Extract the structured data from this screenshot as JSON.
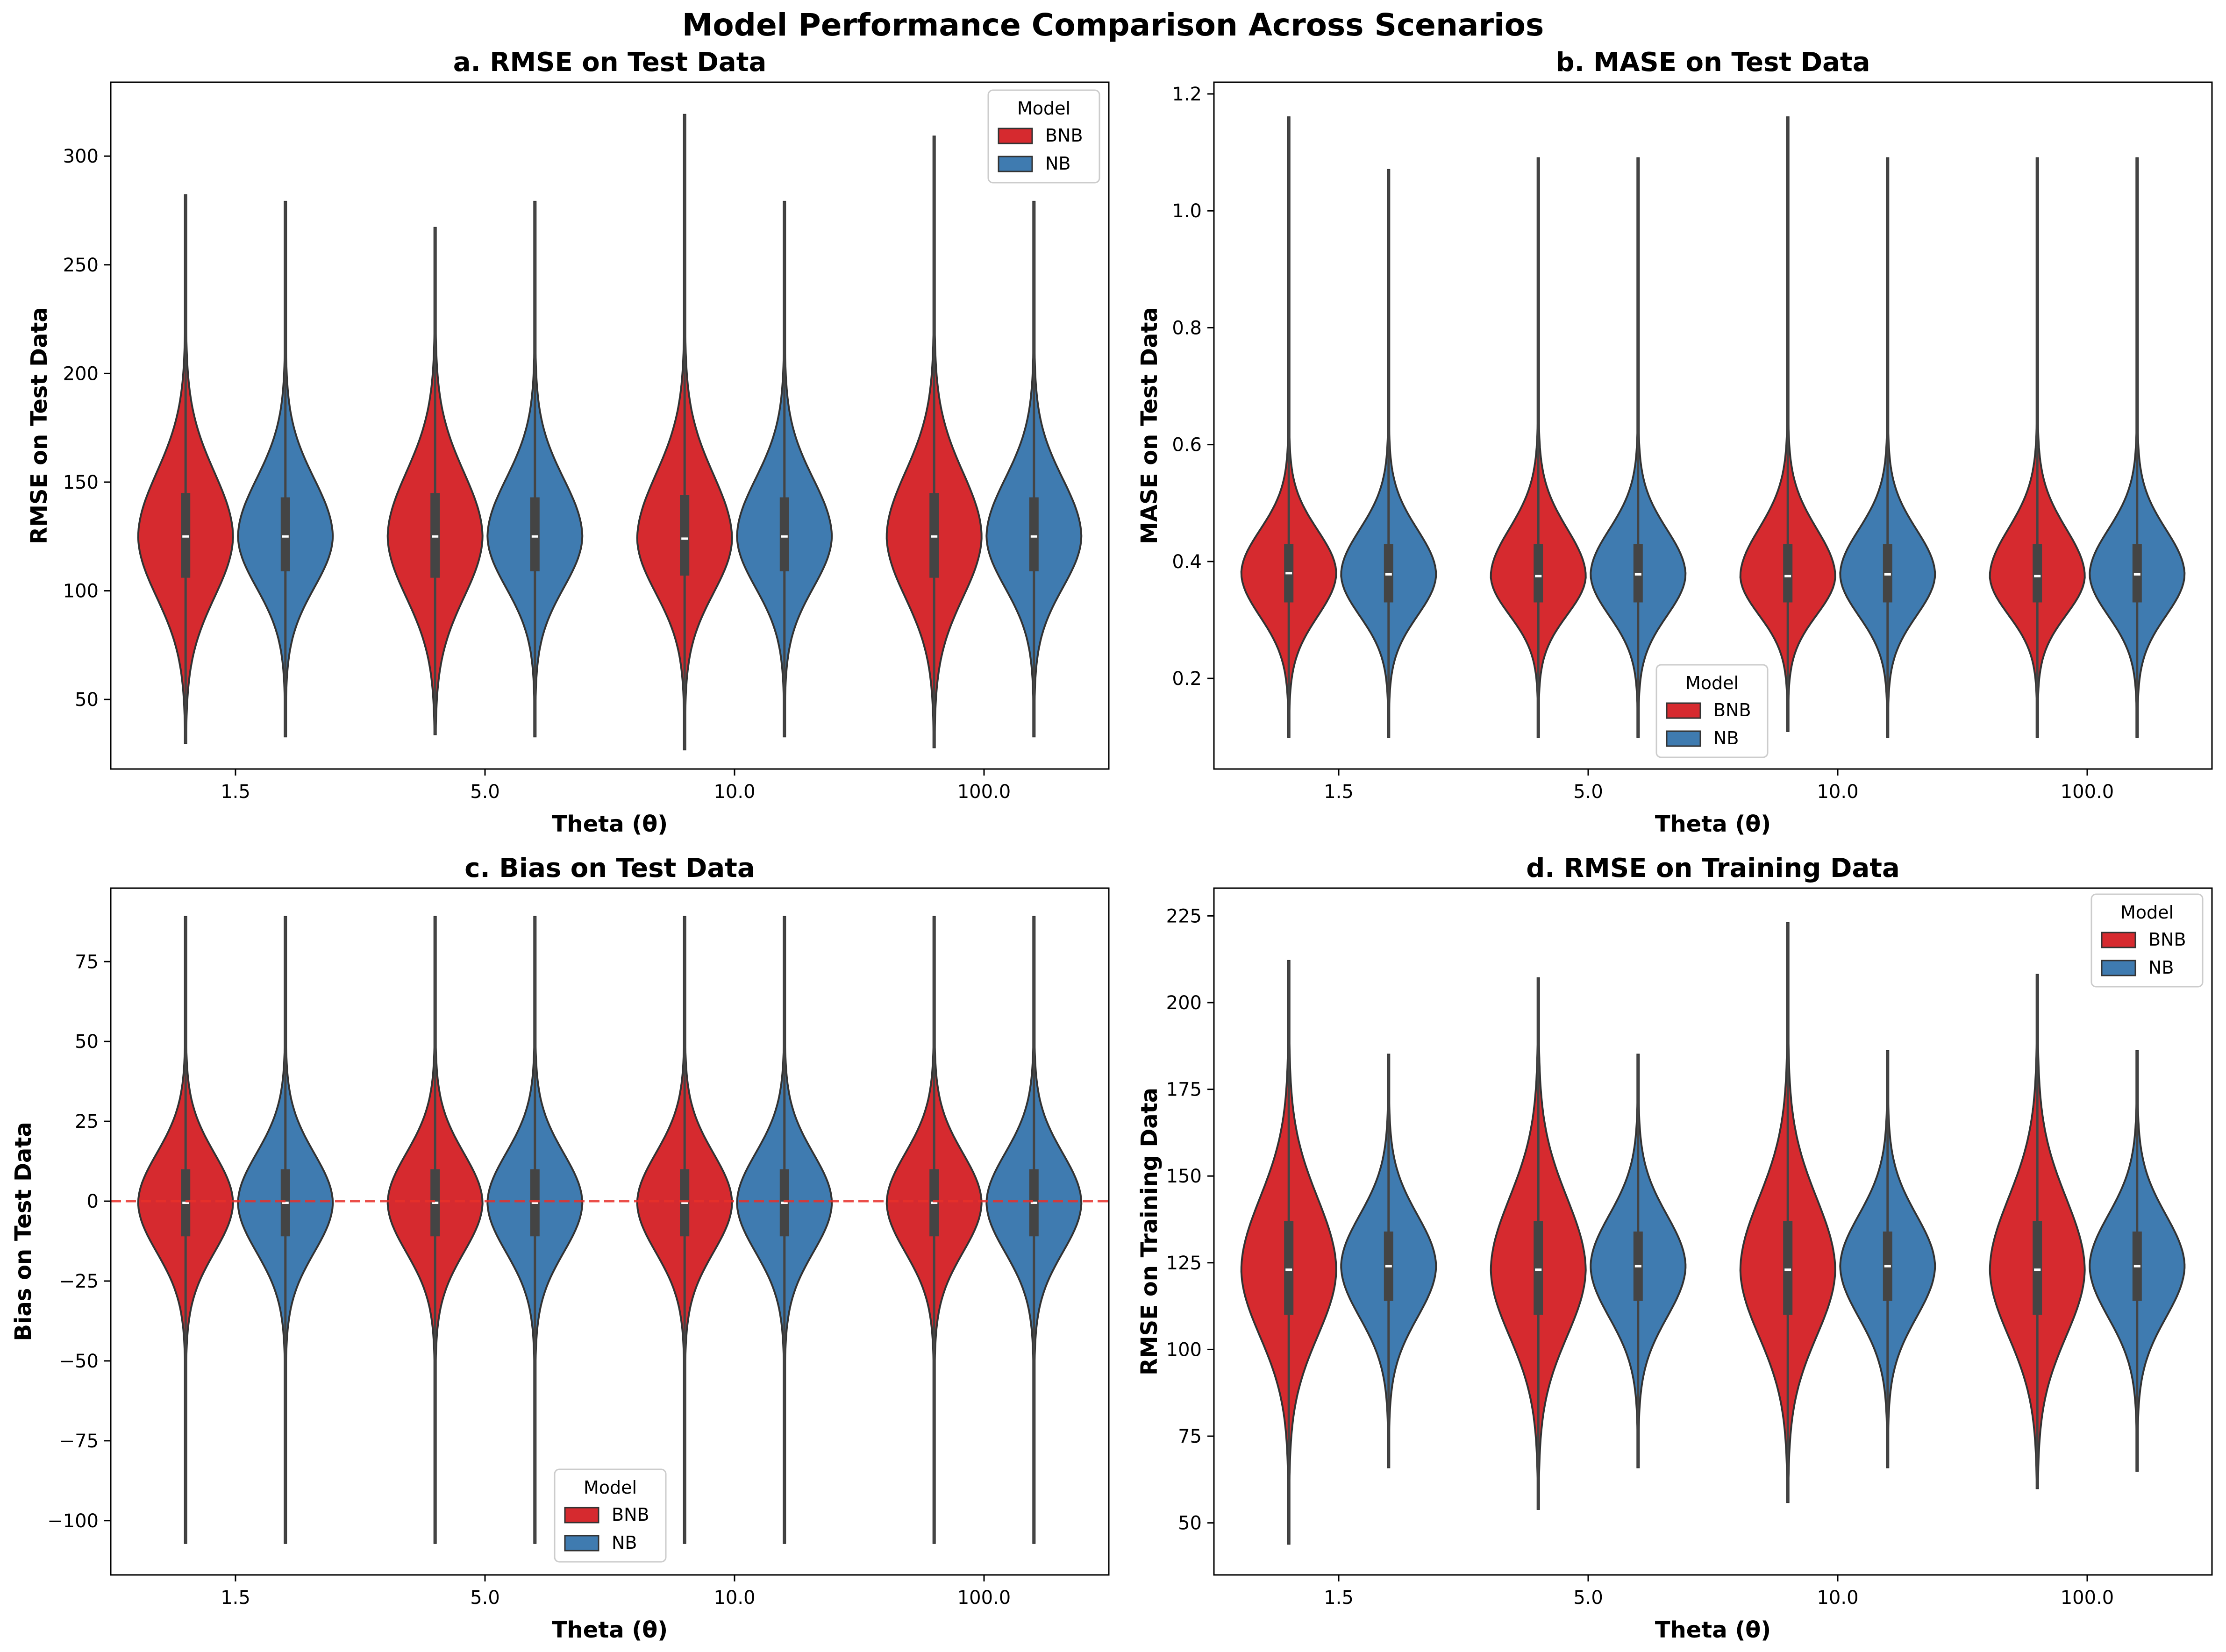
{
  "figure": {
    "suptitle": "Model Performance Comparison Across Scenarios"
  },
  "colors": {
    "BNB": "#d62a2f",
    "NB": "#3f7bb0",
    "edge": "#333333",
    "box": "#444444",
    "refline": "#e8302a"
  },
  "chart_data": [
    {
      "type": "violin",
      "title": "a. RMSE on Test Data",
      "xlabel": "Theta (θ)",
      "ylabel": "RMSE on Test Data",
      "categories": [
        "1.5",
        "5.0",
        "10.0",
        "100.0"
      ],
      "ylim": [
        18,
        334
      ],
      "yticks": [
        50,
        100,
        150,
        200,
        250,
        300
      ],
      "ytick_labels": [
        "50",
        "100",
        "150",
        "200",
        "250",
        "300"
      ],
      "legend": {
        "title": "Model",
        "position": "top-right"
      },
      "series": [
        {
          "name": "BNB",
          "stats": [
            {
              "min": 30,
              "q1": 106,
              "median": 125,
              "q3": 145,
              "max": 282
            },
            {
              "min": 34,
              "q1": 106,
              "median": 125,
              "q3": 145,
              "max": 267
            },
            {
              "min": 27,
              "q1": 107,
              "median": 124,
              "q3": 144,
              "max": 319
            },
            {
              "min": 28,
              "q1": 106,
              "median": 125,
              "q3": 145,
              "max": 309
            }
          ]
        },
        {
          "name": "NB",
          "stats": [
            {
              "min": 33,
              "q1": 109,
              "median": 125,
              "q3": 143,
              "max": 279
            },
            {
              "min": 33,
              "q1": 109,
              "median": 125,
              "q3": 143,
              "max": 279
            },
            {
              "min": 33,
              "q1": 109,
              "median": 125,
              "q3": 143,
              "max": 279
            },
            {
              "min": 33,
              "q1": 109,
              "median": 125,
              "q3": 143,
              "max": 279
            }
          ]
        }
      ]
    },
    {
      "type": "violin",
      "title": "b. MASE on Test Data",
      "xlabel": "Theta (θ)",
      "ylabel": "MASE on Test Data",
      "categories": [
        "1.5",
        "5.0",
        "10.0",
        "100.0"
      ],
      "ylim": [
        0.045,
        1.22
      ],
      "yticks": [
        0.2,
        0.4,
        0.6,
        0.8,
        1.0,
        1.2
      ],
      "ytick_labels": [
        "0.2",
        "0.4",
        "0.6",
        "0.8",
        "1.0",
        "1.2"
      ],
      "legend": {
        "title": "Model",
        "position": "lower-center"
      },
      "series": [
        {
          "name": "BNB",
          "stats": [
            {
              "min": 0.1,
              "q1": 0.33,
              "median": 0.38,
              "q3": 0.43,
              "max": 1.16
            },
            {
              "min": 0.1,
              "q1": 0.33,
              "median": 0.375,
              "q3": 0.43,
              "max": 1.09
            },
            {
              "min": 0.11,
              "q1": 0.33,
              "median": 0.375,
              "q3": 0.43,
              "max": 1.16
            },
            {
              "min": 0.1,
              "q1": 0.33,
              "median": 0.375,
              "q3": 0.43,
              "max": 1.09
            }
          ]
        },
        {
          "name": "NB",
          "stats": [
            {
              "min": 0.1,
              "q1": 0.33,
              "median": 0.378,
              "q3": 0.43,
              "max": 1.07
            },
            {
              "min": 0.1,
              "q1": 0.33,
              "median": 0.378,
              "q3": 0.43,
              "max": 1.09
            },
            {
              "min": 0.1,
              "q1": 0.33,
              "median": 0.378,
              "q3": 0.43,
              "max": 1.09
            },
            {
              "min": 0.1,
              "q1": 0.33,
              "median": 0.378,
              "q3": 0.43,
              "max": 1.09
            }
          ]
        }
      ]
    },
    {
      "type": "violin",
      "title": "c. Bias on Test Data",
      "xlabel": "Theta (θ)",
      "ylabel": "Bias on Test Data",
      "categories": [
        "1.5",
        "5.0",
        "10.0",
        "100.0"
      ],
      "ylim": [
        -117,
        98
      ],
      "yticks": [
        -100,
        -75,
        -50,
        -25,
        0,
        25,
        50,
        75
      ],
      "ytick_labels": [
        "−100",
        "−75",
        "−50",
        "−25",
        "0",
        "25",
        "50",
        "75"
      ],
      "reference_line": 0,
      "legend": {
        "title": "Model",
        "position": "lower-center"
      },
      "series": [
        {
          "name": "BNB",
          "stats": [
            {
              "min": -107,
              "q1": -11,
              "median": -0.5,
              "q3": 10,
              "max": 89
            },
            {
              "min": -107,
              "q1": -11,
              "median": -0.5,
              "q3": 10,
              "max": 89
            },
            {
              "min": -107,
              "q1": -11,
              "median": -0.5,
              "q3": 10,
              "max": 89
            },
            {
              "min": -107,
              "q1": -11,
              "median": -0.5,
              "q3": 10,
              "max": 89
            }
          ]
        },
        {
          "name": "NB",
          "stats": [
            {
              "min": -107,
              "q1": -11,
              "median": -0.5,
              "q3": 10,
              "max": 89
            },
            {
              "min": -107,
              "q1": -11,
              "median": -0.5,
              "q3": 10,
              "max": 89
            },
            {
              "min": -107,
              "q1": -11,
              "median": -0.5,
              "q3": 10,
              "max": 89
            },
            {
              "min": -107,
              "q1": -11,
              "median": -0.5,
              "q3": 10,
              "max": 89
            }
          ]
        }
      ]
    },
    {
      "type": "violin",
      "title": "d. RMSE on Training Data",
      "xlabel": "Theta (θ)",
      "ylabel": "RMSE on Training Data",
      "categories": [
        "1.5",
        "5.0",
        "10.0",
        "100.0"
      ],
      "ylim": [
        35,
        233
      ],
      "yticks": [
        50,
        75,
        100,
        125,
        150,
        175,
        200,
        225
      ],
      "ytick_labels": [
        "50",
        "75",
        "100",
        "125",
        "150",
        "175",
        "200",
        "225"
      ],
      "legend": {
        "title": "Model",
        "position": "top-right"
      },
      "series": [
        {
          "name": "BNB",
          "stats": [
            {
              "min": 44,
              "q1": 110,
              "median": 123,
              "q3": 137,
              "max": 212
            },
            {
              "min": 54,
              "q1": 110,
              "median": 123,
              "q3": 137,
              "max": 207
            },
            {
              "min": 56,
              "q1": 110,
              "median": 123,
              "q3": 137,
              "max": 223
            },
            {
              "min": 60,
              "q1": 110,
              "median": 123,
              "q3": 137,
              "max": 208
            }
          ]
        },
        {
          "name": "NB",
          "stats": [
            {
              "min": 66,
              "q1": 114,
              "median": 124,
              "q3": 134,
              "max": 185
            },
            {
              "min": 66,
              "q1": 114,
              "median": 124,
              "q3": 134,
              "max": 185
            },
            {
              "min": 66,
              "q1": 114,
              "median": 124,
              "q3": 134,
              "max": 186
            },
            {
              "min": 65,
              "q1": 114,
              "median": 124,
              "q3": 134,
              "max": 186
            }
          ]
        }
      ]
    }
  ]
}
